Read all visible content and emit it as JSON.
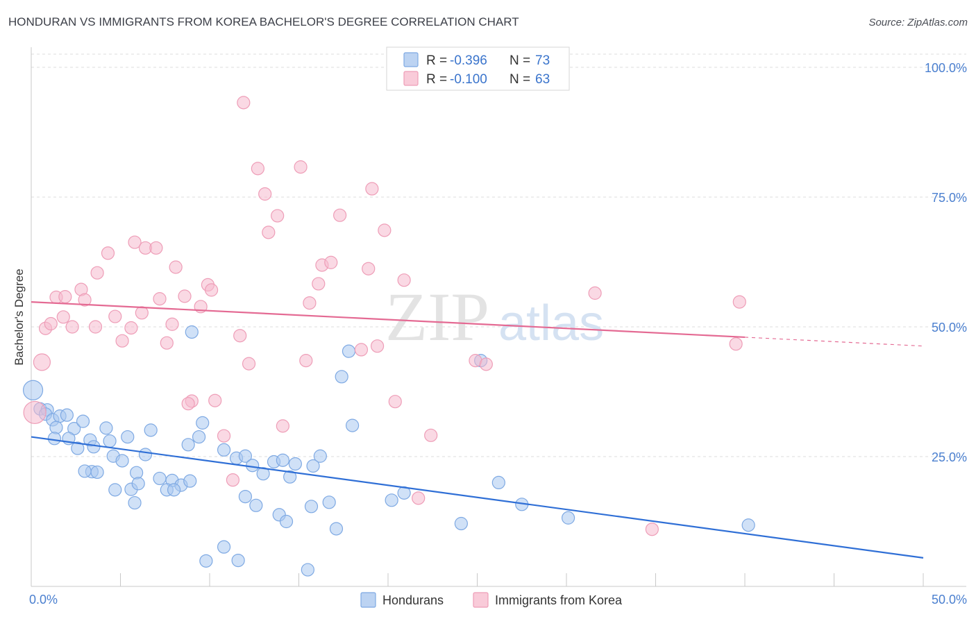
{
  "title": "HONDURAN VS IMMIGRANTS FROM KOREA BACHELOR'S DEGREE CORRELATION CHART",
  "source": "Source: ZipAtlas.com",
  "watermark": {
    "zip": "ZIP",
    "atlas": "atlas"
  },
  "legend_top": [
    {
      "r_label": "R =",
      "r_value": "-0.396",
      "n_label": "N =",
      "n_value": "73"
    },
    {
      "r_label": "R =",
      "r_value": "-0.100",
      "n_label": "N =",
      "n_value": "63"
    }
  ],
  "chart_data": {
    "type": "scatter",
    "title": "HONDURAN VS IMMIGRANTS FROM KOREA BACHELOR'S DEGREE CORRELATION CHART",
    "xlabel": "",
    "ylabel": "Bachelor's Degree",
    "xlim": [
      0,
      50
    ],
    "ylim": [
      0,
      100
    ],
    "x_tick_labels": [
      "0.0%",
      "50.0%"
    ],
    "y_ticks": [
      25,
      50,
      75,
      100
    ],
    "y_tick_labels": [
      "25.0%",
      "50.0%",
      "75.0%",
      "100.0%"
    ],
    "series": [
      {
        "name": "Hondurans",
        "color": "#8ab4e8",
        "line_color": "#2f6fd6",
        "r": -0.396,
        "n": 73,
        "trend": {
          "x0": 0,
          "y0": 28.8,
          "x1": 50,
          "y1": 5.5
        },
        "points": [
          [
            0.1,
            37.8
          ],
          [
            0.5,
            34.2
          ],
          [
            0.9,
            34.0
          ],
          [
            0.8,
            33.2
          ],
          [
            1.2,
            32.1
          ],
          [
            1.6,
            32.8
          ],
          [
            2.0,
            33.0
          ],
          [
            1.4,
            30.6
          ],
          [
            2.4,
            30.4
          ],
          [
            2.9,
            31.8
          ],
          [
            1.3,
            28.5
          ],
          [
            2.1,
            28.5
          ],
          [
            3.3,
            28.2
          ],
          [
            3.5,
            26.9
          ],
          [
            2.6,
            26.6
          ],
          [
            3.4,
            22.1
          ],
          [
            3.0,
            22.2
          ],
          [
            4.2,
            30.5
          ],
          [
            4.4,
            28.0
          ],
          [
            4.6,
            25.1
          ],
          [
            5.1,
            24.2
          ],
          [
            5.4,
            28.8
          ],
          [
            6.7,
            30.1
          ],
          [
            5.9,
            21.9
          ],
          [
            5.6,
            18.7
          ],
          [
            6.0,
            19.8
          ],
          [
            5.8,
            16.1
          ],
          [
            7.9,
            20.4
          ],
          [
            7.6,
            18.6
          ],
          [
            8.4,
            19.5
          ],
          [
            8.9,
            20.3
          ],
          [
            8.8,
            27.3
          ],
          [
            9.4,
            28.8
          ],
          [
            9.6,
            31.5
          ],
          [
            10.8,
            26.3
          ],
          [
            11.5,
            24.7
          ],
          [
            12.0,
            25.1
          ],
          [
            12.4,
            23.3
          ],
          [
            13.0,
            21.7
          ],
          [
            13.6,
            24.0
          ],
          [
            14.1,
            24.3
          ],
          [
            14.5,
            21.1
          ],
          [
            14.8,
            23.6
          ],
          [
            15.8,
            23.2
          ],
          [
            16.2,
            25.1
          ],
          [
            16.7,
            16.2
          ],
          [
            17.1,
            11.1
          ],
          [
            18.0,
            31.0
          ],
          [
            17.4,
            40.4
          ],
          [
            17.8,
            45.3
          ],
          [
            12.6,
            15.6
          ],
          [
            12.0,
            17.3
          ],
          [
            13.9,
            13.8
          ],
          [
            14.3,
            12.5
          ],
          [
            15.7,
            15.4
          ],
          [
            10.8,
            7.6
          ],
          [
            9.8,
            4.9
          ],
          [
            11.6,
            5.0
          ],
          [
            15.5,
            3.2
          ],
          [
            20.2,
            16.6
          ],
          [
            20.9,
            18.0
          ],
          [
            24.1,
            12.1
          ],
          [
            26.2,
            20.0
          ],
          [
            25.2,
            43.5
          ],
          [
            27.5,
            15.8
          ],
          [
            30.1,
            13.2
          ],
          [
            40.2,
            11.8
          ],
          [
            9.0,
            49.0
          ],
          [
            8.0,
            18.6
          ],
          [
            4.7,
            18.6
          ],
          [
            3.7,
            22.0
          ],
          [
            6.4,
            25.4
          ],
          [
            7.2,
            20.8
          ]
        ]
      },
      {
        "name": "Immigrants from Korea",
        "color": "#f4a9c0",
        "line_color": "#e46a93",
        "r": -0.1,
        "n": 63,
        "trend": {
          "x0": 0,
          "y0": 54.8,
          "x1": 40,
          "y1": 48.0,
          "dash_x1": 50,
          "dash_y1": 46.3
        },
        "points": [
          [
            0.2,
            33.5
          ],
          [
            0.6,
            43.2
          ],
          [
            0.8,
            49.7
          ],
          [
            1.1,
            50.6
          ],
          [
            1.4,
            55.7
          ],
          [
            1.9,
            55.8
          ],
          [
            1.8,
            51.9
          ],
          [
            2.3,
            50.0
          ],
          [
            2.8,
            57.2
          ],
          [
            3.0,
            55.2
          ],
          [
            3.6,
            50.0
          ],
          [
            3.7,
            60.4
          ],
          [
            4.3,
            64.2
          ],
          [
            4.7,
            52.0
          ],
          [
            5.1,
            47.3
          ],
          [
            5.6,
            49.8
          ],
          [
            5.8,
            66.3
          ],
          [
            6.4,
            65.2
          ],
          [
            6.2,
            52.7
          ],
          [
            7.0,
            65.2
          ],
          [
            7.2,
            55.4
          ],
          [
            7.6,
            46.9
          ],
          [
            7.9,
            50.5
          ],
          [
            8.1,
            61.5
          ],
          [
            8.6,
            55.9
          ],
          [
            9.0,
            35.7
          ],
          [
            8.8,
            35.2
          ],
          [
            9.5,
            53.9
          ],
          [
            9.9,
            58.1
          ],
          [
            10.1,
            57.1
          ],
          [
            10.3,
            35.8
          ],
          [
            10.8,
            29.0
          ],
          [
            11.3,
            20.5
          ],
          [
            11.7,
            48.3
          ],
          [
            12.2,
            42.9
          ],
          [
            11.9,
            93.2
          ],
          [
            12.7,
            80.5
          ],
          [
            13.1,
            75.6
          ],
          [
            13.3,
            68.2
          ],
          [
            13.8,
            71.4
          ],
          [
            14.1,
            30.9
          ],
          [
            15.1,
            80.8
          ],
          [
            15.4,
            43.5
          ],
          [
            15.6,
            54.6
          ],
          [
            16.1,
            58.3
          ],
          [
            16.3,
            61.9
          ],
          [
            16.8,
            62.4
          ],
          [
            17.3,
            71.5
          ],
          [
            18.5,
            45.6
          ],
          [
            19.1,
            76.6
          ],
          [
            18.9,
            61.2
          ],
          [
            19.4,
            46.3
          ],
          [
            19.8,
            68.6
          ],
          [
            20.4,
            35.6
          ],
          [
            20.9,
            59.0
          ],
          [
            21.7,
            17.0
          ],
          [
            22.4,
            29.1
          ],
          [
            24.9,
            43.5
          ],
          [
            25.5,
            42.8
          ],
          [
            31.6,
            56.5
          ],
          [
            34.8,
            11.0
          ],
          [
            39.5,
            46.7
          ],
          [
            39.7,
            54.8
          ]
        ]
      }
    ],
    "legend_bottom": [
      "Hondurans",
      "Immigrants from Korea"
    ]
  }
}
